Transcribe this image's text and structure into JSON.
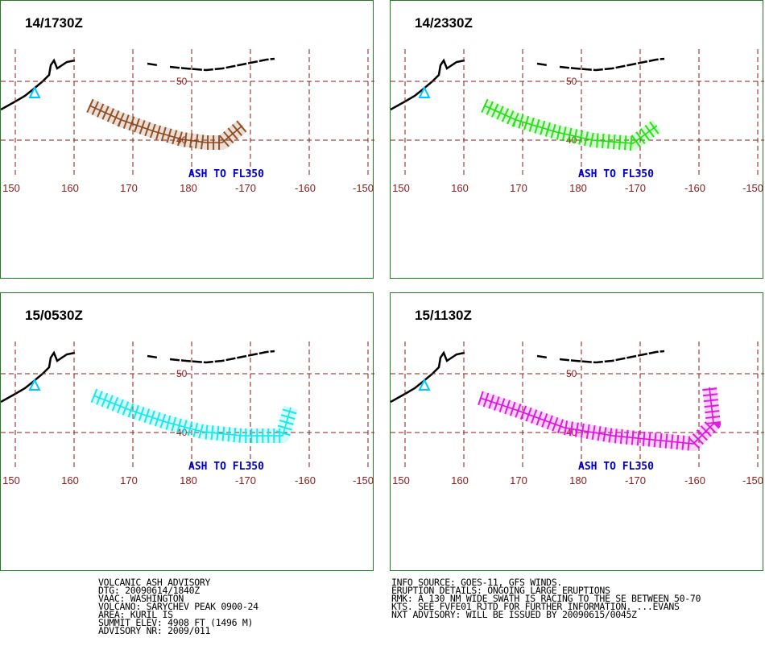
{
  "colors": {
    "frame": "#1e7d1e",
    "grid": "#8b1a1a",
    "label_blue": "#0000c8",
    "volcano": "#00c8ff"
  },
  "panels": [
    {
      "time": "14/1730Z",
      "color": "#8b4a1e",
      "label": "ASH TO FL350",
      "extent": "short"
    },
    {
      "time": "14/2330Z",
      "color": "#22dd11",
      "label": "ASH TO FL350",
      "extent": "medium"
    },
    {
      "time": "15/0530Z",
      "color": "#11e8e8",
      "label": "ASH TO FL350",
      "extent": "long"
    },
    {
      "time": "15/1130Z",
      "color": "#dd11dd",
      "label": "ASH TO FL350",
      "extent": "longest"
    }
  ],
  "lon_labels": [
    "150",
    "160",
    "170",
    "180",
    "-170",
    "-160",
    "-150"
  ],
  "lat_labels": [
    "50",
    "40"
  ],
  "left_text": [
    "VOLCANIC ASH ADVISORY",
    "DTG: 20090614/1840Z",
    "VAAC: WASHINGTON",
    "VOLCANO: SARYCHEV PEAK 0900-24",
    "AREA: KURIL IS",
    "SUMMIT ELEV: 4908 FT (1496 M)",
    "ADVISORY NR: 2009/011"
  ],
  "right_text": [
    "INFO SOURCE: GOES-11, GFS WINDS.",
    "ERUPTION DETAILS: ONGOING LARGE ERUPTIONS",
    "RMK: A 130 NM WIDE SWATH IS RACING TO THE SE BETWEEN 50-70",
    "KTS. SEE FVFE01 RJTD FOR FURTHER INFORMATION. ...EVANS",
    "NXT ADVISORY: WILL BE ISSUED BY 20090615/0045Z"
  ]
}
